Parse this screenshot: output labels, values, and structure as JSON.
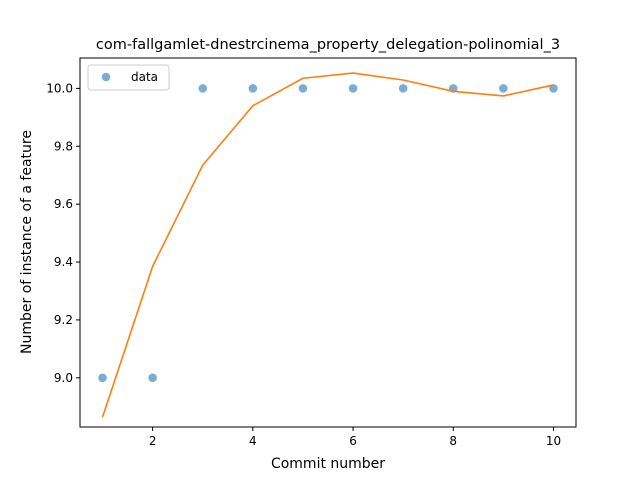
{
  "chart_data": {
    "type": "scatter",
    "title": "com-fallgamlet-dnestrcinema_property_delegation-polinomial_3",
    "xlabel": "Commit number",
    "ylabel": "Number of instance of a feature",
    "xlim": [
      0.55,
      10.45
    ],
    "ylim": [
      8.83,
      10.105
    ],
    "xticks": [
      2,
      4,
      6,
      8,
      10
    ],
    "yticks": [
      9.0,
      9.2,
      9.4,
      9.6,
      9.8,
      10.0
    ],
    "legend": {
      "position": "top-left",
      "entries": [
        "data"
      ]
    },
    "grid": false,
    "series": [
      {
        "name": "data",
        "kind": "points",
        "color": "#1f77b4",
        "x": [
          1,
          2,
          3,
          4,
          5,
          6,
          7,
          8,
          9,
          10
        ],
        "y": [
          9.0,
          9.0,
          10.0,
          10.0,
          10.0,
          10.0,
          10.0,
          10.0,
          10.0,
          10.0
        ]
      },
      {
        "kind": "line",
        "color": "#ff7f0e",
        "x": [
          1,
          2,
          3,
          4,
          5,
          6,
          7,
          8,
          9,
          10
        ],
        "y": [
          8.864,
          9.385,
          9.735,
          9.94,
          10.035,
          10.053,
          10.029,
          9.99,
          9.974,
          10.012
        ]
      }
    ]
  }
}
